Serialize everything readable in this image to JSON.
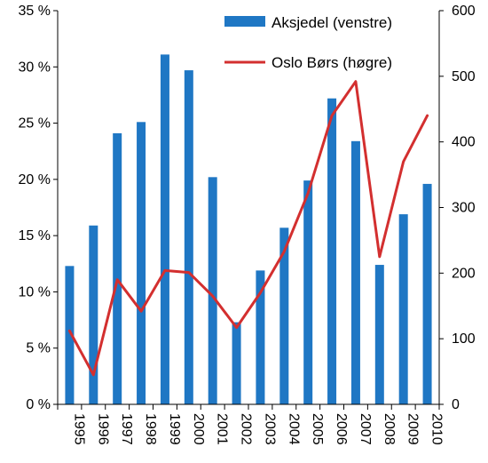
{
  "chart_data": {
    "type": "bar+line",
    "categories": [
      "1995",
      "1996",
      "1997",
      "1998",
      "1999",
      "2000",
      "2001",
      "2002",
      "2003",
      "2004",
      "2005",
      "2006",
      "2007",
      "2008",
      "2009",
      "2010"
    ],
    "left_axis": {
      "ticks": [
        "0 %",
        "5 %",
        "10 %",
        "15 %",
        "20 %",
        "25 %",
        "30 %",
        "35 %"
      ],
      "ylim": [
        0,
        35
      ]
    },
    "right_axis": {
      "ticks": [
        "0",
        "100",
        "200",
        "300",
        "400",
        "500",
        "600"
      ],
      "ylim": [
        0,
        600
      ]
    },
    "series": [
      {
        "name": "Aksjedel (venstre)",
        "type": "bar",
        "axis": "left",
        "color": "#1f77c4",
        "values": [
          12.3,
          15.9,
          24.1,
          25.1,
          31.1,
          29.7,
          20.2,
          7.3,
          11.9,
          15.7,
          19.9,
          27.2,
          23.4,
          12.4,
          16.9,
          19.6
        ]
      },
      {
        "name": "Oslo Børs (høgre)",
        "type": "line",
        "axis": "right",
        "color": "#d32f2f",
        "values": [
          112,
          45,
          190,
          142,
          204,
          201,
          165,
          117,
          170,
          233,
          322,
          440,
          492,
          225,
          370,
          440
        ]
      }
    ],
    "legend_position": "top-right",
    "grid": false
  }
}
